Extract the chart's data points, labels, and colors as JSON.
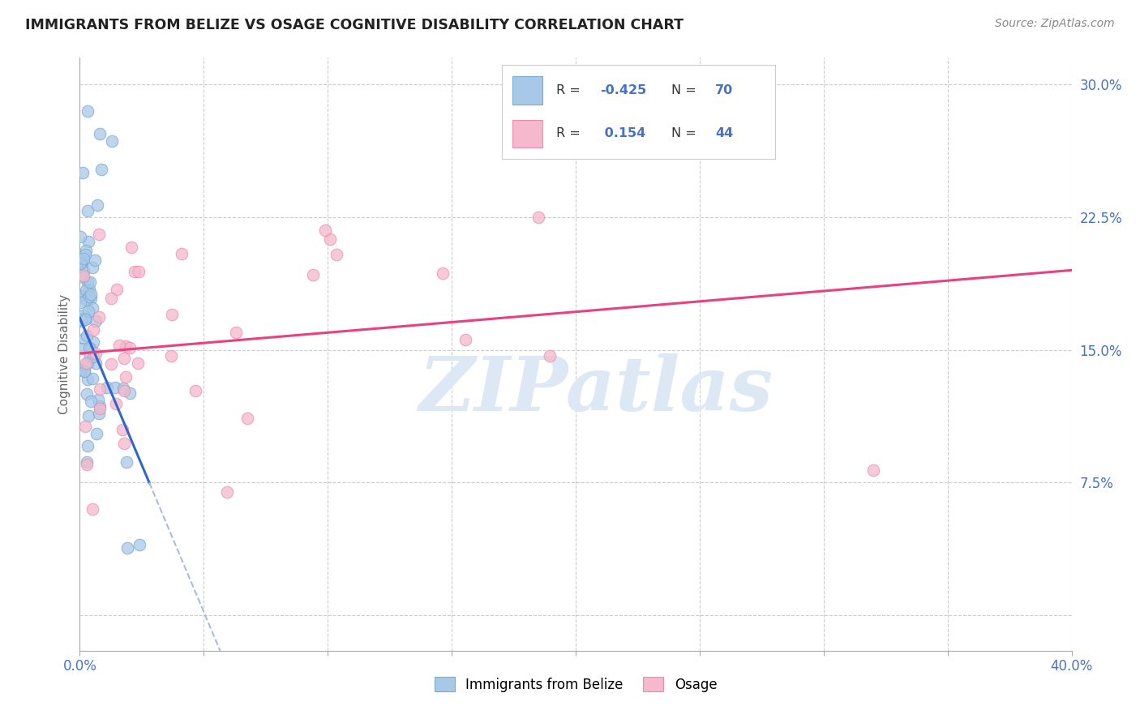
{
  "title": "IMMIGRANTS FROM BELIZE VS OSAGE COGNITIVE DISABILITY CORRELATION CHART",
  "source": "Source: ZipAtlas.com",
  "ylabel": "Cognitive Disability",
  "belize_R": "-0.425",
  "belize_N": "70",
  "osage_R": "0.154",
  "osage_N": "44",
  "belize_color": "#a8c8e8",
  "belize_edge_color": "#7aaad0",
  "osage_color": "#f5b8cc",
  "osage_edge_color": "#e890aa",
  "belize_line_color": "#3366CC",
  "osage_line_color": "#E84080",
  "dashed_line_color": "#aabbdd",
  "legend_label_belize": "Immigrants from Belize",
  "legend_label_osage": "Osage",
  "watermark": "ZIPatlas",
  "watermark_color": "#dde8f5",
  "background_color": "#ffffff",
  "grid_color": "#cccccc",
  "tick_color": "#4472C4",
  "title_color": "#222222",
  "source_color": "#888888",
  "ylabel_color": "#666666",
  "xlim": [
    0.0,
    0.4
  ],
  "ylim": [
    -0.02,
    0.315
  ],
  "y_ticks": [
    0.0,
    0.075,
    0.15,
    0.225,
    0.3
  ],
  "y_tick_labels": [
    "",
    "7.5%",
    "15.0%",
    "22.5%",
    "30.0%"
  ],
  "x_ticks": [
    0.0,
    0.05,
    0.1,
    0.15,
    0.2,
    0.25,
    0.3,
    0.35,
    0.4
  ],
  "x_tick_labels": [
    "0.0%",
    "",
    "",
    "",
    "",
    "",
    "",
    "",
    "40.0%"
  ],
  "belize_line_x0": 0.0,
  "belize_line_y0": 0.168,
  "belize_line_x1": 0.028,
  "belize_line_y1": 0.075,
  "osage_line_x0": 0.0,
  "osage_line_x1": 0.4,
  "osage_line_y0": 0.148,
  "osage_line_y1": 0.195
}
